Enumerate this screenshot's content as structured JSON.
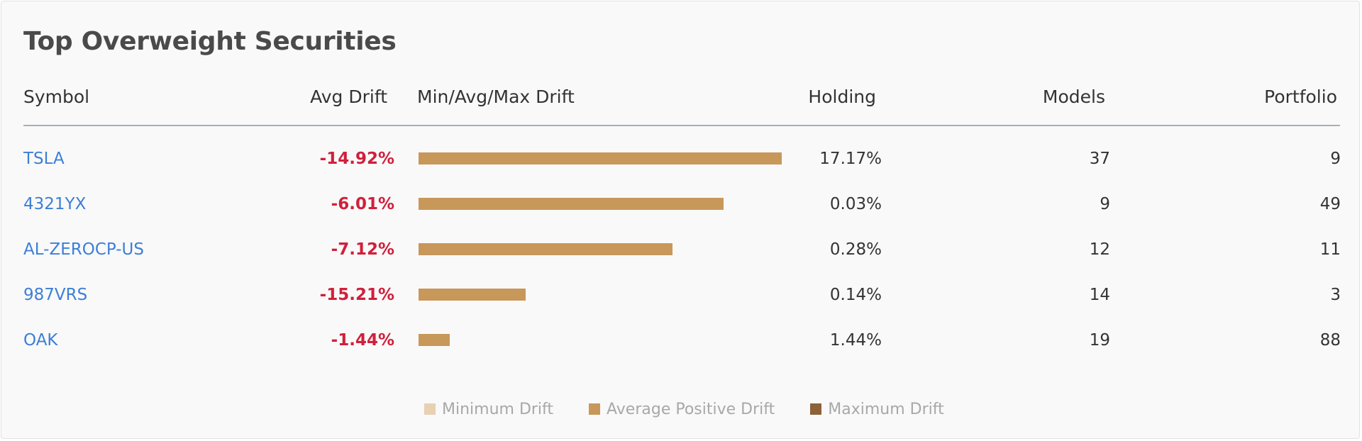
{
  "card": {
    "title": "Top Overweight Securities"
  },
  "table": {
    "headers": {
      "symbol": "Symbol",
      "avg_drift": "Avg Drift",
      "min_avg_max": "Min/Avg/Max Drift",
      "holding": "Holding",
      "models": "Models",
      "portfolio": "Portfolio"
    },
    "rows": [
      {
        "symbol": "TSLA",
        "avg_drift": "-14.92%",
        "bar_fraction": 1.0,
        "holding": "17.17%",
        "models": "37",
        "portfolio": "9"
      },
      {
        "symbol": "4321YX",
        "avg_drift": "-6.01%",
        "bar_fraction": 0.84,
        "holding": "0.03%",
        "models": "9",
        "portfolio": "49"
      },
      {
        "symbol": "AL-ZEROCP-US",
        "avg_drift": "-7.12%",
        "bar_fraction": 0.7,
        "holding": "0.28%",
        "models": "12",
        "portfolio": "11"
      },
      {
        "symbol": "987VRS",
        "avg_drift": "-15.21%",
        "bar_fraction": 0.295,
        "holding": "0.14%",
        "models": "14",
        "portfolio": "3"
      },
      {
        "symbol": "OAK",
        "avg_drift": "-1.44%",
        "bar_fraction": 0.085,
        "holding": "1.44%",
        "models": "19",
        "portfolio": "88"
      }
    ]
  },
  "legend": {
    "items": [
      {
        "label": "Minimum Drift",
        "color": "#e8d0b2"
      },
      {
        "label": "Average Positive Drift",
        "color": "#c8975a"
      },
      {
        "label": "Maximum Drift",
        "color": "#8c6239"
      }
    ]
  },
  "colors": {
    "link": "#3d7fd6",
    "negative": "#d0203b",
    "bar": "#c8975a"
  }
}
